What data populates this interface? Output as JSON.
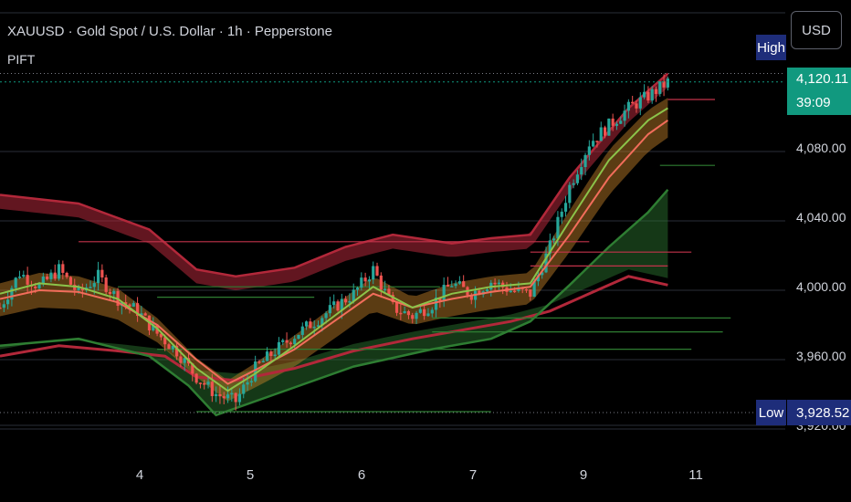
{
  "header": {
    "title": "XAUUSD · Gold Spot / U.S. Dollar · 1h · Pepperstone",
    "indicator": "PIFT"
  },
  "currency_button": "USD",
  "price_scale": {
    "ticks": [
      "4,080.00",
      "4,040.00",
      "4,000.00",
      "3,960.00",
      "3,920.00"
    ],
    "high_label": "High",
    "low_label": "Low",
    "low_value": "3,928.52",
    "last_price": "4,120.11",
    "countdown": "39:09"
  },
  "colors": {
    "background": "#000000",
    "up_candle": "#26a69a",
    "down_candle": "#ef5350",
    "last_price_tag": "#11997f",
    "high_low_tag": "#1e2d7a",
    "upper_band": "#b2283a",
    "lower_band_green": "#2e7d32",
    "fast_line": "#8bc34a",
    "slow_line": "#f26d5b",
    "cloud_orange": "#c9862a"
  },
  "chart_data": {
    "type": "candlestick",
    "x_ticks": [
      "4",
      "5",
      "6",
      "7",
      "9",
      "11"
    ],
    "y_ticks": [
      3920,
      3960,
      4000,
      4040,
      4080
    ],
    "ylim": [
      3905,
      4140
    ],
    "high": 4125,
    "low": 3928.52,
    "last_price": 4120.11,
    "close_path": [
      [
        0,
        3990
      ],
      [
        5,
        4010
      ],
      [
        10,
        4002
      ],
      [
        15,
        4012
      ],
      [
        20,
        3998
      ],
      [
        25,
        4008
      ],
      [
        30,
        3995
      ],
      [
        35,
        3988
      ],
      [
        40,
        3975
      ],
      [
        45,
        3965
      ],
      [
        50,
        3950
      ],
      [
        55,
        3940
      ],
      [
        60,
        3936
      ],
      [
        65,
        3955
      ],
      [
        70,
        3965
      ],
      [
        75,
        3974
      ],
      [
        80,
        3982
      ],
      [
        85,
        3990
      ],
      [
        90,
        3998
      ],
      [
        95,
        4012
      ],
      [
        100,
        3990
      ],
      [
        105,
        3985
      ],
      [
        110,
        3992
      ],
      [
        115,
        4004
      ],
      [
        120,
        3998
      ],
      [
        125,
        4005
      ],
      [
        130,
        4000
      ],
      [
        135,
        3998
      ],
      [
        140,
        4025
      ],
      [
        145,
        4060
      ],
      [
        150,
        4085
      ],
      [
        155,
        4095
      ],
      [
        160,
        4105
      ],
      [
        165,
        4112
      ],
      [
        170,
        4120
      ]
    ],
    "upper_band": [
      [
        0,
        4055
      ],
      [
        20,
        4050
      ],
      [
        38,
        4035
      ],
      [
        50,
        4012
      ],
      [
        60,
        4008
      ],
      [
        75,
        4013
      ],
      [
        88,
        4025
      ],
      [
        100,
        4032
      ],
      [
        115,
        4027
      ],
      [
        125,
        4030
      ],
      [
        135,
        4032
      ],
      [
        145,
        4065
      ],
      [
        160,
        4105
      ],
      [
        170,
        4125
      ]
    ],
    "lower_band": [
      [
        0,
        3962
      ],
      [
        15,
        3968
      ],
      [
        30,
        3965
      ],
      [
        42,
        3962
      ],
      [
        50,
        3950
      ],
      [
        60,
        3948
      ],
      [
        75,
        3955
      ],
      [
        90,
        3965
      ],
      [
        105,
        3972
      ],
      [
        120,
        3978
      ],
      [
        130,
        3982
      ],
      [
        140,
        3988
      ],
      [
        150,
        3998
      ],
      [
        160,
        4008
      ],
      [
        170,
        4003
      ]
    ],
    "green_lower_band": [
      [
        0,
        3968
      ],
      [
        20,
        3972
      ],
      [
        38,
        3962
      ],
      [
        48,
        3945
      ],
      [
        55,
        3928
      ],
      [
        70,
        3940
      ],
      [
        90,
        3956
      ],
      [
        110,
        3966
      ],
      [
        125,
        3972
      ],
      [
        135,
        3982
      ],
      [
        145,
        4003
      ],
      [
        155,
        4025
      ],
      [
        165,
        4045
      ],
      [
        170,
        4058
      ]
    ],
    "fast_line": [
      [
        0,
        3998
      ],
      [
        10,
        4004
      ],
      [
        20,
        4002
      ],
      [
        30,
        3995
      ],
      [
        40,
        3978
      ],
      [
        50,
        3955
      ],
      [
        58,
        3942
      ],
      [
        65,
        3952
      ],
      [
        75,
        3968
      ],
      [
        85,
        3985
      ],
      [
        95,
        4002
      ],
      [
        105,
        3990
      ],
      [
        115,
        3998
      ],
      [
        125,
        4002
      ],
      [
        135,
        4004
      ],
      [
        145,
        4040
      ],
      [
        155,
        4075
      ],
      [
        165,
        4098
      ],
      [
        170,
        4105
      ]
    ],
    "slow_line": [
      [
        0,
        3995
      ],
      [
        10,
        4000
      ],
      [
        20,
        3999
      ],
      [
        30,
        3993
      ],
      [
        40,
        3980
      ],
      [
        50,
        3960
      ],
      [
        58,
        3946
      ],
      [
        65,
        3954
      ],
      [
        75,
        3966
      ],
      [
        85,
        3982
      ],
      [
        95,
        3998
      ],
      [
        105,
        3990
      ],
      [
        115,
        3995
      ],
      [
        125,
        3999
      ],
      [
        135,
        4002
      ],
      [
        145,
        4032
      ],
      [
        155,
        4065
      ],
      [
        165,
        4090
      ],
      [
        170,
        4098
      ]
    ],
    "levels": [
      {
        "y": 4028,
        "x1": 20,
        "x2": 150,
        "color": "#c2334a"
      },
      {
        "y": 4022,
        "x1": 135,
        "x2": 176,
        "color": "#c2334a"
      },
      {
        "y": 4014,
        "x1": 135,
        "x2": 170,
        "color": "#c2334a"
      },
      {
        "y": 4002,
        "x1": 30,
        "x2": 112,
        "color": "#2e7d32"
      },
      {
        "y": 3996,
        "x1": 40,
        "x2": 80,
        "color": "#2e7d32"
      },
      {
        "y": 3984,
        "x1": 110,
        "x2": 186,
        "color": "#2e7d32"
      },
      {
        "y": 3976,
        "x1": 110,
        "x2": 184,
        "color": "#2e7d32"
      },
      {
        "y": 3966,
        "x1": 40,
        "x2": 176,
        "color": "#2e7d32"
      },
      {
        "y": 3930,
        "x1": 50,
        "x2": 125,
        "color": "#2e7d32"
      },
      {
        "y": 4110,
        "x1": 170,
        "x2": 182,
        "color": "#c2334a"
      },
      {
        "y": 4072,
        "x1": 168,
        "x2": 182,
        "color": "#2e7d32"
      }
    ]
  }
}
